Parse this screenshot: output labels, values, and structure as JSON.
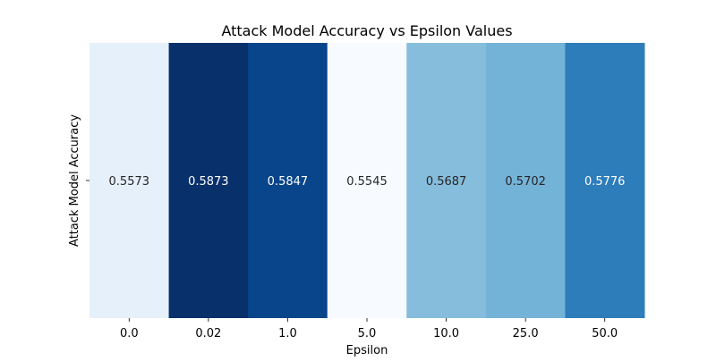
{
  "chart_data": {
    "type": "heatmap",
    "title": "Attack Model Accuracy vs Epsilon Values",
    "xlabel": "Epsilon",
    "ylabel": "Attack Model Accuracy",
    "categories": [
      "0.0",
      "0.02",
      "1.0",
      "5.0",
      "10.0",
      "25.0",
      "50.0"
    ],
    "rows": [
      ""
    ],
    "values": [
      [
        0.5573,
        0.5873,
        0.5847,
        0.5545,
        0.5687,
        0.5702,
        0.5776
      ]
    ],
    "annotations": [
      "0.5573",
      "0.5873",
      "0.5847",
      "0.5545",
      "0.5687",
      "0.5702",
      "0.5776"
    ],
    "colormap": "Blues",
    "colorbar": false,
    "grid": false
  }
}
